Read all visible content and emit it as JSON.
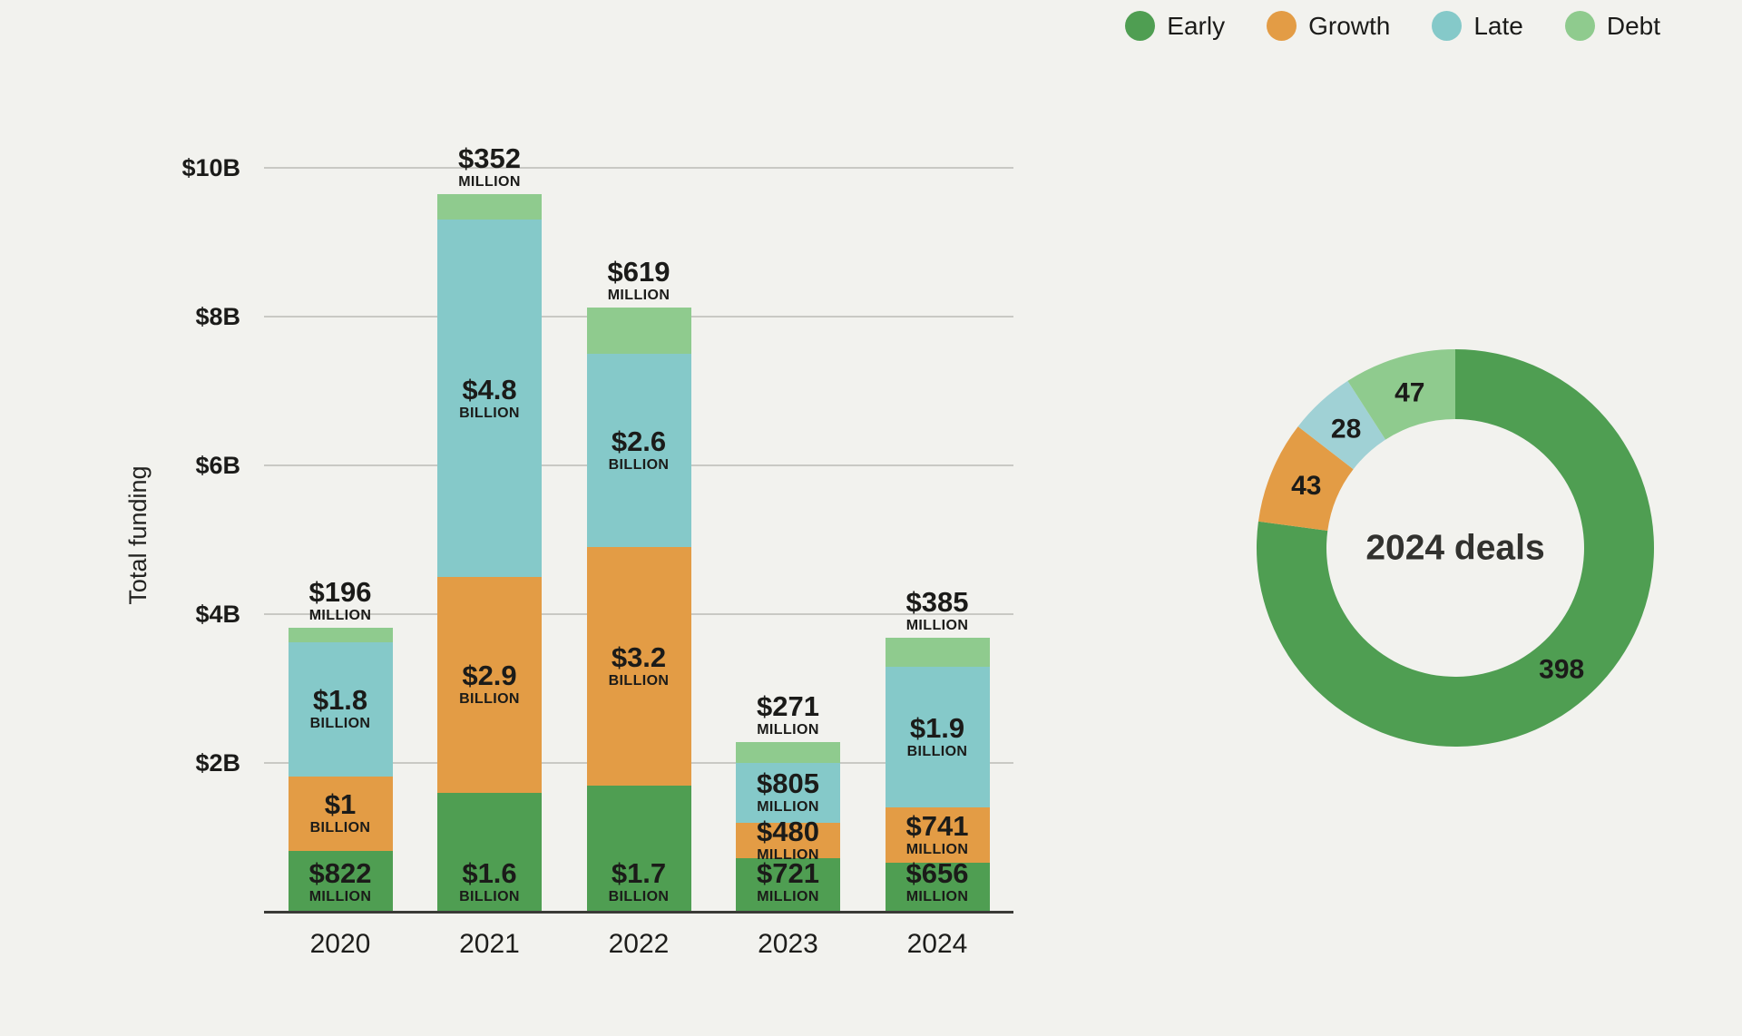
{
  "background": "#F2F2EE",
  "legend": {
    "items": [
      {
        "label": "Early",
        "color": "#4F9E52"
      },
      {
        "label": "Growth",
        "color": "#E39C45"
      },
      {
        "label": "Late",
        "color": "#85C9C9"
      },
      {
        "label": "Debt",
        "color": "#8FCB8E"
      }
    ]
  },
  "chart_data": [
    {
      "type": "bar",
      "variant": "stacked-vertical",
      "title": "",
      "xlabel": "",
      "ylabel": "Total funding",
      "y_unit": "USD billions",
      "categories": [
        "2020",
        "2021",
        "2022",
        "2023",
        "2024"
      ],
      "ylim": [
        0,
        10.5
      ],
      "grid": "horizontal",
      "legend_position": "top-right",
      "yticks": [
        {
          "value": 2,
          "label": "$2B"
        },
        {
          "value": 4,
          "label": "$4B"
        },
        {
          "value": 6,
          "label": "$6B"
        },
        {
          "value": 8,
          "label": "$8B"
        },
        {
          "value": 10,
          "label": "$10B"
        }
      ],
      "series": [
        {
          "name": "Early",
          "color": "#4F9E52",
          "label_anchor": "bottom",
          "values_billions": [
            0.822,
            1.6,
            1.7,
            0.721,
            0.656
          ],
          "bar_labels": [
            {
              "value": "$822",
              "unit": "MILLION"
            },
            {
              "value": "$1.6",
              "unit": "BILLION"
            },
            {
              "value": "$1.7",
              "unit": "BILLION"
            },
            {
              "value": "$721",
              "unit": "MILLION"
            },
            {
              "value": "$656",
              "unit": "MILLION"
            }
          ]
        },
        {
          "name": "Growth",
          "color": "#E39C45",
          "label_anchor": "center",
          "values_billions": [
            1.0,
            2.9,
            3.2,
            0.48,
            0.741
          ],
          "bar_labels": [
            {
              "value": "$1",
              "unit": "BILLION"
            },
            {
              "value": "$2.9",
              "unit": "BILLION"
            },
            {
              "value": "$3.2",
              "unit": "BILLION"
            },
            {
              "value": "$480",
              "unit": "MILLION"
            },
            {
              "value": "$741",
              "unit": "MILLION"
            }
          ]
        },
        {
          "name": "Late",
          "color": "#85C9C9",
          "label_anchor": "center",
          "values_billions": [
            1.8,
            4.8,
            2.6,
            0.805,
            1.9
          ],
          "bar_labels": [
            {
              "value": "$1.8",
              "unit": "BILLION"
            },
            {
              "value": "$4.8",
              "unit": "BILLION"
            },
            {
              "value": "$2.6",
              "unit": "BILLION"
            },
            {
              "value": "$805",
              "unit": "MILLION"
            },
            {
              "value": "$1.9",
              "unit": "BILLION"
            }
          ]
        },
        {
          "name": "Debt",
          "color": "#8FCB8E",
          "label_anchor": "above",
          "values_billions": [
            0.196,
            0.352,
            0.619,
            0.271,
            0.385
          ],
          "bar_labels": [
            {
              "value": "$196",
              "unit": "MILLION"
            },
            {
              "value": "$352",
              "unit": "MILLION"
            },
            {
              "value": "$619",
              "unit": "MILLION"
            },
            {
              "value": "$271",
              "unit": "MILLION"
            },
            {
              "value": "$385",
              "unit": "MILLION"
            }
          ]
        }
      ]
    },
    {
      "type": "pie",
      "variant": "donut",
      "center_label": "2024 deals",
      "start_angle_deg": 0,
      "direction": "clockwise",
      "segments": [
        {
          "name": "Early",
          "value": 398,
          "color": "#4F9E52"
        },
        {
          "name": "Growth",
          "value": 43,
          "color": "#E39C45"
        },
        {
          "name": "Late",
          "value": 28,
          "color": "#A0D1D5"
        },
        {
          "name": "Debt",
          "value": 47,
          "color": "#8FCB8E"
        }
      ]
    }
  ]
}
